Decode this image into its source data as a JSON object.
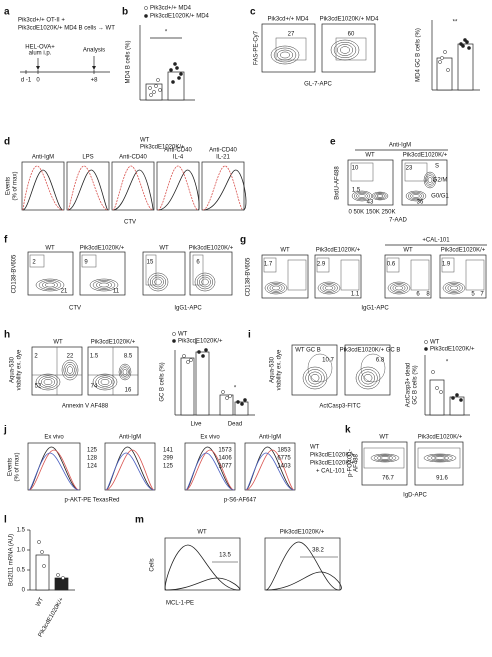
{
  "panels": {
    "a": [
      "a",
      "Pik3cd+/+ OT-II +",
      "Pik3cdE1020K/+ MD4 B cells → WT",
      "HEL-OVA+",
      "alum i.p.",
      "Analysis",
      "d -1",
      "0",
      "+8"
    ],
    "b": [
      "b",
      "Pik3cd+/+ MD4",
      "Pik3cdE1020K/+ MD4",
      "MD4 B cells (%)",
      "*"
    ],
    "c": [
      "c",
      "Pik3cd+/+ MD4",
      "Pik3cdE1020K/+ MD4",
      "27",
      "60",
      "FAS-PE-Cy7",
      "GL-7-APC",
      "MD4 GC B cells (%)",
      "**"
    ],
    "d": [
      "d",
      "WT",
      "Pik3cdE1020K/+",
      "Anti-IgM",
      "LPS",
      "Anti-CD40",
      "Anti-CD40",
      "IL-4",
      "Anti-CD40",
      "IL-21",
      "Events",
      "(% of max)",
      "CTV"
    ],
    "e": [
      "e",
      "Anti-IgM",
      "WT",
      "Pik3cdE1020K/+",
      "10",
      "1.5",
      "43",
      "23",
      "36",
      "S",
      "G2/M",
      "G0/G1",
      "BrdU-AF488",
      "7-AAD",
      "0 50K 150K 250K"
    ],
    "f": [
      "f",
      "WT",
      "Pik3cdE1020K/+",
      "2",
      "21",
      "9",
      "11",
      "CD138-BV605",
      "CTV",
      "WT",
      "Pik3cdE1020K/+",
      "15",
      "6",
      "IgG1-APC"
    ],
    "g": [
      "g",
      "+CAL-101",
      "WT",
      "Pik3cdE1020K/+",
      "WT",
      "Pik3cdE1020K/+",
      "1.7",
      "2.9",
      "0.6",
      "1.9",
      "1.1",
      "6",
      "8",
      "5",
      "7",
      "CD138-BV605",
      "IgG1-APC"
    ],
    "h": [
      "h",
      "WT",
      "Pik3cdE1020K/+",
      "2",
      "22",
      "52",
      "1.5",
      "8.5",
      "74",
      "16",
      "Aqua-530",
      "viability ex. dye",
      "Annexin V AF488",
      "WT",
      "Pik3cdE1020K/+",
      "GC B cells (%)",
      "Live",
      "Dead",
      "*",
      "*"
    ],
    "i": [
      "i",
      "WT GC B",
      "Pik3cdE1020K/+ GC B",
      "10.7",
      "6.8",
      "Aqua-530",
      "viability ex. dye",
      "ActCasp3-FITC",
      "WT",
      "Pik3cdE1020K/+",
      "ActCasp3+ dead",
      "GC B cells (%)",
      "*"
    ],
    "j": [
      "j",
      "Ex vivo",
      "Anti-IgM",
      "125",
      "128",
      "124",
      "141",
      "299",
      "125",
      "Events",
      "(% of max)",
      "p-AKT-PE TexasRed",
      "Ex vivo",
      "Anti-IgM",
      "1573",
      "1406",
      "1077",
      "1853",
      "6775",
      "1403",
      "p-S6-AF647",
      "WT",
      "Pik3cdE1020K/+",
      "Pik3cdE1020K/+",
      "+ CAL-101"
    ],
    "k": [
      "k",
      "WT",
      "Pik3cdE1020K/+",
      "76.7",
      "91.6",
      "p-FOXO1-",
      "AF488",
      "IgD-APC"
    ],
    "l": [
      "l",
      "Bcl2l11 mRNA (AU)",
      "WT",
      "Pik3cdE1020K/+",
      "0",
      "0.5",
      "1.0",
      "1.5"
    ],
    "m": [
      "m",
      "WT",
      "Pik3cdE1020K/+",
      "13.5",
      "38.2",
      "Cells",
      "MCL-1-PE"
    ]
  }
}
